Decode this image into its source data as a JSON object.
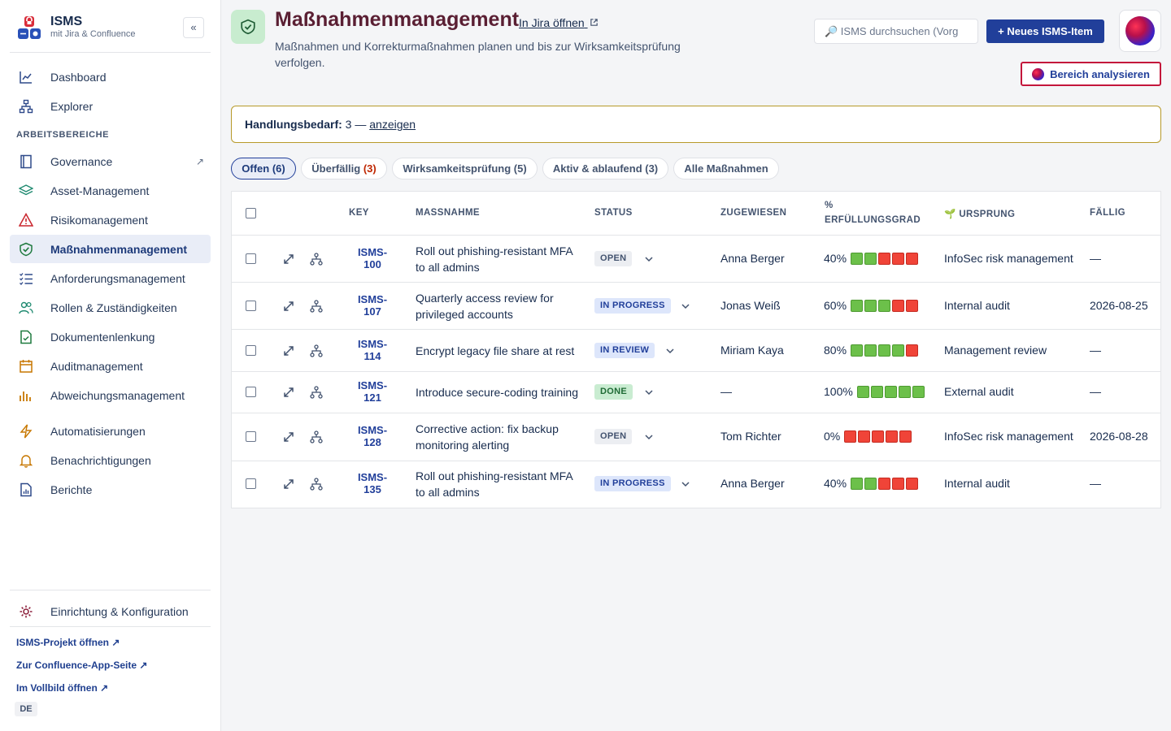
{
  "sidebar": {
    "brand_title": "ISMS",
    "brand_sub": "mit Jira & Confluence",
    "collapse_label": "«",
    "top_items": [
      {
        "label": "Dashboard",
        "icon": "chart-line-icon"
      },
      {
        "label": "Explorer",
        "icon": "hierarchy-icon"
      }
    ],
    "section_label": "ARBEITSBEREICHE",
    "items": [
      {
        "label": "Governance",
        "icon": "book-icon",
        "ext": "↗"
      },
      {
        "label": "Asset-Management",
        "icon": "layers-icon"
      },
      {
        "label": "Risikomanagement",
        "icon": "warning-icon"
      },
      {
        "label": "Maßnahmenmanagement",
        "icon": "shield-check-icon",
        "active": true
      },
      {
        "label": "Anforderungsmanagement",
        "icon": "checklist-icon"
      },
      {
        "label": "Rollen & Zuständigkeiten",
        "icon": "people-icon"
      },
      {
        "label": "Dokumentenlenkung",
        "icon": "document-check-icon"
      },
      {
        "label": "Auditmanagement",
        "icon": "calendar-icon"
      },
      {
        "label": "Abweichungsmanagement",
        "icon": "bar-chart-icon"
      }
    ],
    "extra_items": [
      {
        "label": "Automatisierungen",
        "icon": "lightning-icon"
      },
      {
        "label": "Benachrichtigungen",
        "icon": "bell-icon"
      },
      {
        "label": "Berichte",
        "icon": "report-icon"
      }
    ],
    "settings_label": "Einrichtung & Konfiguration",
    "footer_links": [
      "ISMS-Projekt öffnen ↗",
      "Zur Confluence-App-Seite ↗",
      "Im Vollbild öffnen ↗"
    ],
    "language": "DE"
  },
  "header": {
    "title": "Maßnahmenmanagement",
    "jira_link": "In Jira öffnen",
    "description": "Maßnahmen und Korrekturmaßnahmen planen und bis zur Wirksamkeitsprüfung verfolgen.",
    "search_placeholder": "🔎 ISMS durchsuchen (Vorg",
    "new_button": "+ Neues ISMS-Item",
    "analyze_button": "Bereich analysieren"
  },
  "banner": {
    "label": "Handlungsbedarf:",
    "count_text": " 3 — ",
    "link": "anzeigen"
  },
  "tabs": [
    {
      "label": "Offen (6)",
      "active": true
    },
    {
      "label": "Überfällig ",
      "count": "(3)"
    },
    {
      "label": "Wirksamkeitsprüfung (5)"
    },
    {
      "label": "Aktiv & ablaufend (3)"
    },
    {
      "label": "Alle Maßnahmen"
    }
  ],
  "table": {
    "headers": {
      "key": "KEY",
      "title": "MASSNAHME",
      "status": "STATUS",
      "assignee": "ZUGEWIESEN",
      "progress_1": "%",
      "progress_2": "ERFÜLLUNGSGRAD",
      "origin": "🌱 URSPRUNG",
      "due": "FÄLLIG"
    },
    "rows": [
      {
        "key_1": "ISMS-",
        "key_2": "100",
        "title": "Roll out phishing-resistant MFA to all admins",
        "status": "OPEN",
        "status_kind": "open",
        "assignee": "Anna Berger",
        "progress": "40%",
        "filled": 2,
        "origin": "InfoSec risk management",
        "due": "—"
      },
      {
        "key_1": "ISMS-",
        "key_2": "107",
        "title": "Quarterly access review for privileged accounts",
        "status": "IN PROGRESS",
        "status_kind": "prog",
        "assignee": "Jonas Weiß",
        "progress": "60%",
        "filled": 3,
        "origin": "Internal audit",
        "due": "2026-08-25"
      },
      {
        "key_1": "ISMS-",
        "key_2": "114",
        "title": "Encrypt legacy file share at rest",
        "status": "IN REVIEW",
        "status_kind": "prog",
        "assignee": "Miriam Kaya",
        "progress": "80%",
        "filled": 4,
        "origin": "Management review",
        "due": "—"
      },
      {
        "key_1": "ISMS-",
        "key_2": "121",
        "title": "Introduce secure-coding training",
        "status": "DONE",
        "status_kind": "done",
        "assignee": "—",
        "progress": "100%",
        "filled": 5,
        "origin": "External audit",
        "due": "—"
      },
      {
        "key_1": "ISMS-",
        "key_2": "128",
        "title": "Corrective action: fix backup monitoring alerting",
        "status": "OPEN",
        "status_kind": "open",
        "assignee": "Tom Richter",
        "progress": "0%",
        "filled": 0,
        "origin": "InfoSec risk management",
        "due": "2026-08-28"
      },
      {
        "key_1": "ISMS-",
        "key_2": "135",
        "title": "Roll out phishing-resistant MFA to all admins",
        "status": "IN PROGRESS",
        "status_kind": "prog",
        "assignee": "Anna Berger",
        "progress": "40%",
        "filled": 2,
        "origin": "Internal audit",
        "due": "—"
      }
    ]
  }
}
